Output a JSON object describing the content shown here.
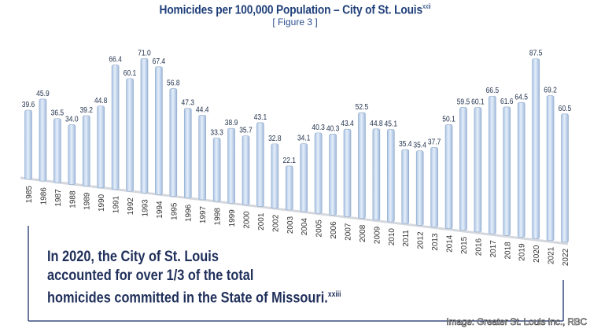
{
  "chart_data": {
    "type": "bar",
    "title": "Homicides per 100,000 Population – City of St. Louis",
    "title_footnote": "xxii",
    "subtitle": "[ Figure 3 ]",
    "categories": [
      "1985",
      "1986",
      "1987",
      "1988",
      "1989",
      "1990",
      "1991",
      "1992",
      "1993",
      "1994",
      "1995",
      "1996",
      "1997",
      "1998",
      "1999",
      "2000",
      "2001",
      "2002",
      "2003",
      "2004",
      "2005",
      "2006",
      "2007",
      "2008",
      "2009",
      "2010",
      "2011",
      "2012",
      "2013",
      "2014",
      "2015",
      "2016",
      "2017",
      "2018",
      "2019",
      "2020",
      "2021",
      "2022"
    ],
    "values": [
      39.6,
      45.9,
      36.5,
      34.0,
      39.2,
      44.8,
      66.4,
      60.1,
      71.0,
      67.4,
      56.8,
      47.3,
      44.4,
      33.3,
      38.9,
      35.7,
      43.1,
      32.8,
      22.1,
      34.1,
      40.3,
      40.3,
      43.4,
      52.5,
      44.8,
      45.1,
      35.4,
      35.4,
      37.7,
      50.1,
      59.5,
      60.1,
      66.5,
      61.6,
      64.5,
      87.5,
      69.2,
      60.5
    ],
    "data_labels": [
      "39.6",
      "45.9",
      "36.5",
      "34.0",
      "39.2",
      "44.8",
      "66.4",
      "60.1",
      "71.0",
      "67.4",
      "56.8",
      "47.3",
      "44.4",
      "33.3",
      "38.9",
      "35.7",
      "43.1",
      "32.8",
      "22.1",
      "34.1",
      "40.3",
      "40.3",
      "43.4",
      "52.5",
      "44.8",
      "45.1",
      "35.4",
      "35.4",
      "37.7",
      "50.1",
      "59.5",
      "60.1",
      "66.5",
      "61.6",
      "64.5",
      "87.5",
      "69.2",
      "60.5"
    ],
    "xlabel": "",
    "ylabel": "",
    "grid": false,
    "bar_color": "#c9dcf2"
  },
  "callout": {
    "lines": [
      "In 2020, the City of St. Louis",
      "accounted for over 1/3 of the total",
      "homicides committed in the State of Missouri."
    ],
    "footnote": "xxiii"
  },
  "credit": "Image: Greater St. Louis Inc., RBC",
  "colors": {
    "title": "#1f3f7a",
    "callout": "#1f2f5a",
    "frame": "#3a4d80"
  }
}
